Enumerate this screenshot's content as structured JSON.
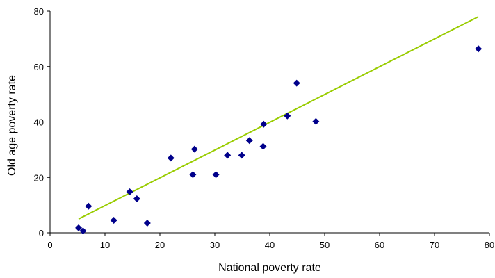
{
  "chart_data": {
    "type": "scatter",
    "xlabel": "National poverty rate",
    "ylabel": "Old age poverty rate",
    "xlim": [
      0,
      80
    ],
    "ylim": [
      0,
      80
    ],
    "xticks": [
      "0",
      "10",
      "20",
      "30",
      "40",
      "50",
      "60",
      "70",
      "80"
    ],
    "yticks": [
      "0",
      "20",
      "40",
      "60",
      "80"
    ],
    "grid": false,
    "marker_color": "#00008B",
    "trendline_color": "#99CC00",
    "points": [
      {
        "x": 5.2,
        "y": 1.8
      },
      {
        "x": 6.0,
        "y": 0.7
      },
      {
        "x": 7.0,
        "y": 9.6
      },
      {
        "x": 11.6,
        "y": 4.5
      },
      {
        "x": 14.5,
        "y": 14.8
      },
      {
        "x": 15.8,
        "y": 12.3
      },
      {
        "x": 17.7,
        "y": 3.5
      },
      {
        "x": 22.0,
        "y": 27.0
      },
      {
        "x": 26.0,
        "y": 21.0
      },
      {
        "x": 26.3,
        "y": 30.2
      },
      {
        "x": 30.2,
        "y": 21.0
      },
      {
        "x": 32.3,
        "y": 28.0
      },
      {
        "x": 34.9,
        "y": 28.0
      },
      {
        "x": 36.3,
        "y": 33.3
      },
      {
        "x": 38.8,
        "y": 31.2
      },
      {
        "x": 38.9,
        "y": 39.2
      },
      {
        "x": 43.2,
        "y": 42.2
      },
      {
        "x": 44.9,
        "y": 54.0
      },
      {
        "x": 48.4,
        "y": 40.2
      },
      {
        "x": 78.0,
        "y": 66.4
      }
    ],
    "trendline": {
      "x": [
        5.2,
        78.0
      ],
      "y": [
        5.0,
        78.0
      ]
    }
  }
}
